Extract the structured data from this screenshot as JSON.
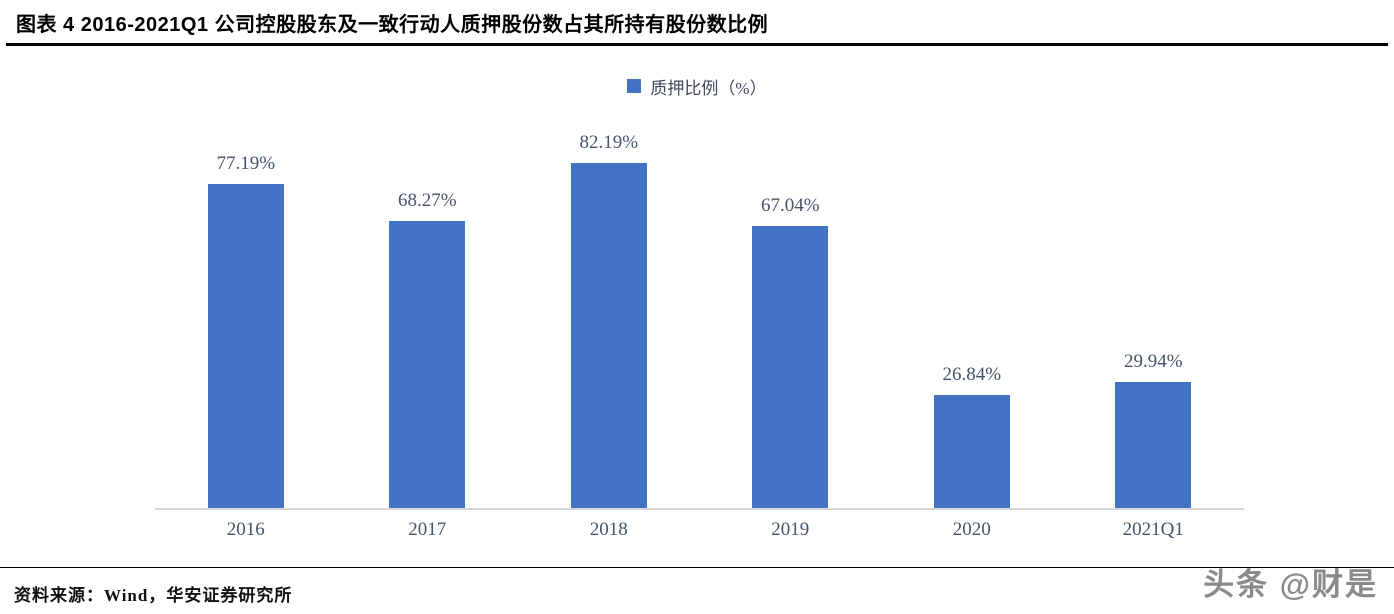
{
  "header": {
    "title": "图表 4 2016-2021Q1 公司控股股东及一致行动人质押股份数占其所持有股份数比例"
  },
  "chart_data": {
    "type": "bar",
    "title": "",
    "legend": [
      "质押比例（%）"
    ],
    "legend_position": "top-center",
    "categories": [
      "2016",
      "2017",
      "2018",
      "2019",
      "2020",
      "2021Q1"
    ],
    "values": [
      77.19,
      68.27,
      82.19,
      67.04,
      26.84,
      29.94
    ],
    "value_labels": [
      "77.19%",
      "68.27%",
      "82.19%",
      "67.04%",
      "26.84%",
      "29.94%"
    ],
    "xlabel": "",
    "ylabel": "",
    "ylim": [
      0,
      90
    ],
    "grid": false,
    "bar_color": "#4472C4",
    "label_color": "#44546A",
    "axis_line_color": "#d6d6d6"
  },
  "footer": {
    "source": "资料来源：Wind，华安证券研究所",
    "watermark": "头条 @财是"
  }
}
